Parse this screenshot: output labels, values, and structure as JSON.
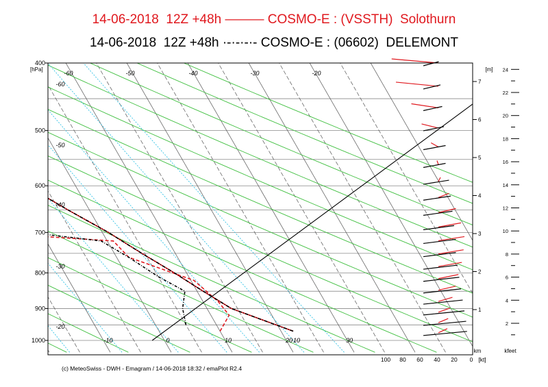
{
  "titles": {
    "run_red": "14-06-2018  12Z +48h ——— COSMO-E : (VSSTH)  Solothurn",
    "run_black": "14-06-2018  12Z +48h ·-·-·-·- COSMO-E : (06602)  DELEMONT"
  },
  "credit": "(c) MeteoSwiss - DWH - Emagram / 14-06-2018  18:32 / emaPlot R2.4",
  "colors": {
    "red": "#e0181e",
    "black": "#000000",
    "dry_adiabat": "#3fbf3f",
    "mixing_ratio": "#33c3e6",
    "isotherm": "#555555"
  },
  "chart_data": {
    "type": "line",
    "subtype": "emagram",
    "ylabel_unit": "[hPa]",
    "pressure_ticks": [
      "400",
      "500",
      "600",
      "700",
      "800",
      "900",
      "1000"
    ],
    "pressure_range_hpa": [
      400,
      1020
    ],
    "temperature_labels": [
      "-60",
      "-50",
      "-40",
      "-30",
      "-20",
      "-60",
      "-50",
      "-40",
      "-30",
      "-20",
      "-10",
      "0",
      "10",
      "20",
      "30"
    ],
    "dry_adiabat_labels": [
      "10",
      "20",
      "30"
    ],
    "height_axis_m": {
      "unit": "[m]",
      "ticks": [
        "1",
        "2",
        "3",
        "4",
        "5",
        "6",
        "7"
      ]
    },
    "height_axis_kfeet": {
      "unit": "kfeet",
      "ticks": [
        "2",
        "4",
        "6",
        "8",
        "10",
        "12",
        "14",
        "16",
        "18",
        "20",
        "22",
        "24"
      ]
    },
    "wind_axis": {
      "unit": "km",
      "ticks": [
        "100",
        "80",
        "60",
        "40",
        "20",
        "0"
      ],
      "unit2": "[kt]"
    },
    "series": [
      {
        "line": "solid",
        "color": "#e0181e",
        "temperature": [
          [
            970,
            22
          ],
          [
            900,
            14
          ],
          [
            850,
            11
          ],
          [
            800,
            8
          ],
          [
            750,
            4.5
          ],
          [
            700,
            1
          ],
          [
            650,
            -3.5
          ],
          [
            600,
            -8
          ],
          [
            550,
            -12.5
          ],
          [
            500,
            -18
          ],
          [
            450,
            -23
          ],
          [
            400,
            -28
          ]
        ],
        "dewpoint": [
          [
            970,
            10
          ],
          [
            920,
            13
          ],
          [
            880,
            12.5
          ],
          [
            820,
            10.5
          ],
          [
            760,
            2
          ],
          [
            720,
            1
          ],
          [
            700,
            -20
          ],
          [
            650,
            -35
          ],
          [
            610,
            -48
          ],
          [
            580,
            -47
          ],
          [
            540,
            -43
          ],
          [
            500,
            -40
          ],
          [
            450,
            -36
          ],
          [
            400,
            -35
          ]
        ],
        "wind_speed_kt": [
          28,
          27,
          25,
          22,
          18,
          15,
          11,
          9,
          8,
          12,
          18,
          26,
          36,
          40,
          47,
          58,
          70,
          88,
          93
        ]
      },
      {
        "line": "dashdot",
        "color": "#000000",
        "temperature": [
          [
            970,
            22
          ],
          [
            900,
            14
          ],
          [
            850,
            11
          ],
          [
            800,
            8
          ],
          [
            750,
            4.5
          ],
          [
            700,
            1
          ],
          [
            650,
            -3.5
          ],
          [
            600,
            -8
          ],
          [
            550,
            -12.5
          ],
          [
            500,
            -18
          ],
          [
            450,
            -23
          ],
          [
            400,
            -28
          ]
        ],
        "dewpoint": [
          [
            950,
            5
          ],
          [
            900,
            6
          ],
          [
            850,
            8
          ],
          [
            810,
            5
          ],
          [
            760,
            2
          ],
          [
            720,
            -1
          ],
          [
            700,
            -12
          ],
          [
            650,
            -25
          ],
          [
            610,
            -40
          ],
          [
            580,
            -42
          ],
          [
            540,
            -42
          ],
          [
            500,
            -40
          ],
          [
            450,
            -36
          ],
          [
            400,
            -35
          ]
        ],
        "wind_speed_kt": [
          5,
          6,
          8,
          10,
          12,
          14,
          16,
          18,
          18,
          20,
          22,
          24,
          26,
          30,
          30,
          32,
          34,
          36,
          38
        ]
      }
    ]
  }
}
